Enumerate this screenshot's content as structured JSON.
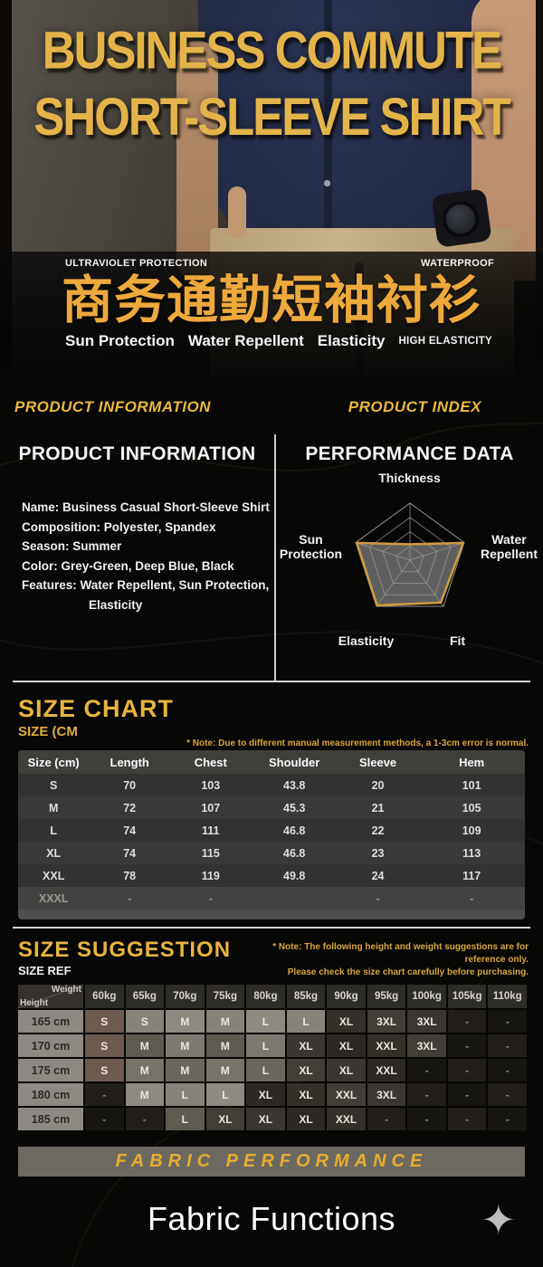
{
  "hero": {
    "title_line1": "BUSINESS COMMUTE",
    "title_line2": "SHORT-SLEEVE SHIRT",
    "badge_left": "ULTRAVIOLET PROTECTION",
    "badge_right": "WATERPROOF",
    "cn_title": "商务通勤短袖衬衫",
    "features": [
      "Sun Protection",
      "Water Repellent",
      "Elasticity"
    ],
    "feature_small": "HIGH ELASTICITY"
  },
  "section_headers": {
    "left": "PRODUCT INFORMATION",
    "right": "PRODUCT INDEX"
  },
  "product_info": {
    "heading": "PRODUCT INFORMATION",
    "lines": [
      "Name: Business Casual Short-Sleeve Shirt",
      "Composition: Polyester, Spandex",
      "Season: Summer",
      "Color: Grey-Green, Deep Blue, Black",
      "Features: Water Repellent, Sun Protection,",
      "Elasticity"
    ]
  },
  "performance": {
    "heading": "PERFORMANCE DATA"
  },
  "chart_data": {
    "type": "radar",
    "axes": [
      "Thickness",
      "Water Repellent",
      "Fit",
      "Elasticity",
      "Sun Protection"
    ],
    "values": [
      1.4,
      4.9,
      4.6,
      4.9,
      4.9
    ],
    "max": 5,
    "rings": 4,
    "fill_color": "#9a9a9a",
    "stroke_color": "#cf9c41",
    "grid_color": "#9a9a9a",
    "title": "PERFORMANCE DATA"
  },
  "size_chart": {
    "heading": "SIZE CHART",
    "subheading": "SIZE (CM",
    "note": "* Note: Due to different manual measurement methods, a 1-3cm error is normal.",
    "columns": [
      "Size (cm)",
      "Length",
      "Chest",
      "Shoulder",
      "Sleeve",
      "Hem"
    ],
    "rows": [
      [
        "S",
        "70",
        "103",
        "43.8",
        "20",
        "101"
      ],
      [
        "M",
        "72",
        "107",
        "45.3",
        "21",
        "105"
      ],
      [
        "L",
        "74",
        "111",
        "46.8",
        "22",
        "109"
      ],
      [
        "XL",
        "74",
        "115",
        "46.8",
        "23",
        "113"
      ],
      [
        "XXL",
        "78",
        "119",
        "49.8",
        "24",
        "117"
      ],
      [
        "XXXL",
        "-",
        "-",
        "",
        "-",
        "-"
      ]
    ]
  },
  "size_suggestion": {
    "heading": "SIZE SUGGESTION",
    "subheading": "SIZE REF",
    "note_line1": "* Note: The following height and weight suggestions are for reference only.",
    "note_line2": "Please check the size chart carefully before purchasing.",
    "corner_top": "Weight",
    "corner_bottom": "Height",
    "weights": [
      "60kg",
      "65kg",
      "70kg",
      "75kg",
      "80kg",
      "85kg",
      "90kg",
      "95kg",
      "100kg",
      "105kg",
      "110kg"
    ],
    "heights": [
      "165 cm",
      "170 cm",
      "175 cm",
      "180 cm",
      "185 cm"
    ],
    "grid": [
      [
        "S",
        "S",
        "M",
        "M",
        "L",
        "L",
        "XL",
        "3XL",
        "3XL",
        "-",
        "-"
      ],
      [
        "S",
        "M",
        "M",
        "M",
        "L",
        "XL",
        "XL",
        "XXL",
        "3XL",
        "-",
        "-"
      ],
      [
        "S",
        "M",
        "M",
        "M",
        "L",
        "XL",
        "XL",
        "XXL",
        "-",
        "-",
        "-"
      ],
      [
        "-",
        "M",
        "L",
        "L",
        "XL",
        "XL",
        "XXL",
        "3XL",
        "-",
        "-",
        "-"
      ],
      [
        "-",
        "-",
        "L",
        "XL",
        "XL",
        "XL",
        "XXL",
        "-",
        "-",
        "-",
        "-"
      ]
    ]
  },
  "fabric": {
    "banner": "FABRIC PERFORMANCE",
    "heading": "Fabric Functions"
  },
  "icons": {
    "sparkle": "✦"
  },
  "colors": {
    "gold": "#E7B440",
    "gold_italic": "#EDB93F",
    "title_gold": "#E4B44A",
    "cn_gold": "#EDA93C",
    "page_bg": "#070706",
    "table_bg": "#393836",
    "banner_bg": "#7A7770"
  }
}
